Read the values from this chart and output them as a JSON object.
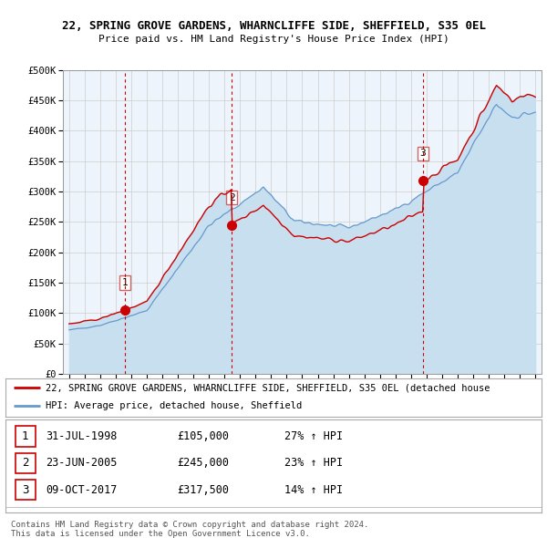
{
  "title1": "22, SPRING GROVE GARDENS, WHARNCLIFFE SIDE, SHEFFIELD, S35 0EL",
  "title2": "Price paid vs. HM Land Registry's House Price Index (HPI)",
  "legend_label_red": "22, SPRING GROVE GARDENS, WHARNCLIFFE SIDE, SHEFFIELD, S35 0EL (detached house",
  "legend_label_blue": "HPI: Average price, detached house, Sheffield",
  "footer1": "Contains HM Land Registry data © Crown copyright and database right 2024.",
  "footer2": "This data is licensed under the Open Government Licence v3.0.",
  "transactions": [
    {
      "num": 1,
      "date": "31-JUL-1998",
      "price": "£105,000",
      "change": "27% ↑ HPI"
    },
    {
      "num": 2,
      "date": "23-JUN-2005",
      "price": "£245,000",
      "change": "23% ↑ HPI"
    },
    {
      "num": 3,
      "date": "09-OCT-2017",
      "price": "£317,500",
      "change": "14% ↑ HPI"
    }
  ],
  "sale_years": [
    1998.58,
    2005.47,
    2017.77
  ],
  "sale_prices": [
    105000,
    245000,
    317500
  ],
  "ylim": [
    0,
    500000
  ],
  "yticks": [
    0,
    50000,
    100000,
    150000,
    200000,
    250000,
    300000,
    350000,
    400000,
    450000,
    500000
  ],
  "xlim_start": 1994.6,
  "xlim_end": 2025.4,
  "red_color": "#cc0000",
  "blue_color": "#6699cc",
  "blue_fill": "#c8dff0",
  "vline_color": "#cc0000",
  "grid_color": "#cccccc",
  "bg_color": "#ffffff",
  "plot_bg": "#eef4fb"
}
